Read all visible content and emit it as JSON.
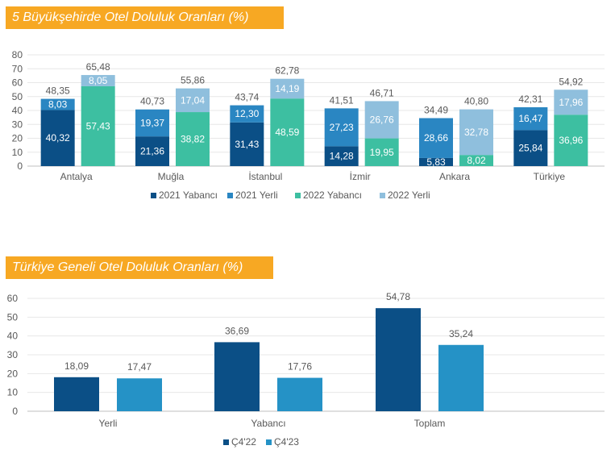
{
  "charts": {
    "chart1": {
      "title": "5 Büyükşehirde Otel Doluluk Oranları (%)"
    },
    "chart2": {
      "title": "Türkiye Geneli Otel Doluluk Oranları (%)"
    }
  },
  "colors": {
    "c2021_yabanci": "#0b4f86",
    "c2021_yerli": "#2a86c2",
    "c2022_yabanci": "#3dbfa1",
    "c2022_yerli": "#8fbfdd",
    "q422": "#0b4f86",
    "q423": "#2592c6",
    "title_bg": "#f7a823"
  },
  "chart_data": [
    {
      "type": "bar",
      "stacked": true,
      "title": "5 Büyükşehirde Otel Doluluk Oranları (%)",
      "categories": [
        "Antalya",
        "Muğla",
        "İstanbul",
        "İzmir",
        "Ankara",
        "Türkiye"
      ],
      "ylim": [
        0,
        80
      ],
      "yticks": [
        0,
        10,
        20,
        30,
        40,
        50,
        60,
        70,
        80
      ],
      "groups": [
        {
          "name": "2021",
          "totals": [
            "48,35",
            "40,73",
            "43,74",
            "41,51",
            "34,49",
            "42,31"
          ],
          "segments": [
            {
              "name": "2021 Yabancı",
              "color_key": "c2021_yabanci",
              "values": [
                40.32,
                21.36,
                31.43,
                14.28,
                5.83,
                25.84
              ],
              "labels": [
                "40,32",
                "21,36",
                "31,43",
                "14,28",
                "5,83",
                "25,84"
              ]
            },
            {
              "name": "2021 Yerli",
              "color_key": "c2021_yerli",
              "values": [
                8.03,
                19.37,
                12.3,
                27.23,
                28.66,
                16.47
              ],
              "labels": [
                "8,03",
                "19,37",
                "12,30",
                "27,23",
                "28,66",
                "16,47"
              ]
            }
          ]
        },
        {
          "name": "2022",
          "totals": [
            "65,48",
            "55,86",
            "62,78",
            "46,71",
            "40,80",
            "54,92"
          ],
          "segments": [
            {
              "name": "2022 Yabancı",
              "color_key": "c2022_yabanci",
              "values": [
                57.43,
                38.82,
                48.59,
                19.95,
                8.02,
                36.96
              ],
              "labels": [
                "57,43",
                "38,82",
                "48,59",
                "19,95",
                "8,02",
                "36,96"
              ]
            },
            {
              "name": "2022 Yerli",
              "color_key": "c2022_yerli",
              "values": [
                8.05,
                17.04,
                14.19,
                26.76,
                32.78,
                17.96
              ],
              "labels": [
                "8,05",
                "17,04",
                "14,19",
                "26,76",
                "32,78",
                "17,96"
              ]
            }
          ]
        }
      ],
      "legend": [
        "2021 Yabancı",
        "2021 Yerli",
        "2022 Yabancı",
        "2022 Yerli"
      ],
      "legend_position": "bottom"
    },
    {
      "type": "bar",
      "title": "Türkiye Geneli Otel Doluluk Oranları (%)",
      "categories": [
        "Yerli",
        "Yabancı",
        "Toplam"
      ],
      "ylim": [
        0,
        60
      ],
      "yticks": [
        0,
        10,
        20,
        30,
        40,
        50,
        60
      ],
      "series": [
        {
          "name": "Ç4'22",
          "color_key": "q422",
          "values": [
            18.09,
            36.69,
            54.78
          ],
          "labels": [
            "18,09",
            "36,69",
            "54,78"
          ]
        },
        {
          "name": "Ç4'23",
          "color_key": "q423",
          "values": [
            17.47,
            17.76,
            35.24
          ],
          "labels": [
            "17,47",
            "17,76",
            "35,24"
          ]
        }
      ],
      "legend": [
        "Ç4'22",
        "Ç4'23"
      ],
      "legend_position": "bottom"
    }
  ]
}
